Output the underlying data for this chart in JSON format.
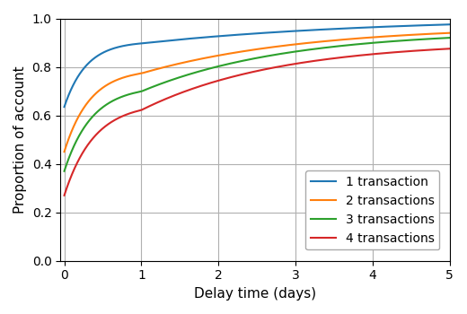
{
  "title": "",
  "xlabel": "Delay time (days)",
  "ylabel": "Proportion of account",
  "xlim": [
    -0.05,
    5
  ],
  "ylim": [
    0.0,
    1.0
  ],
  "xticks": [
    0,
    1,
    2,
    3,
    4,
    5
  ],
  "yticks": [
    0.0,
    0.2,
    0.4,
    0.6,
    0.8,
    1.0
  ],
  "legend_labels": [
    "1 transaction",
    "2 transactions",
    "3 transactions",
    "4 transactions"
  ],
  "line_colors": [
    "#1f77b4",
    "#ff7f0e",
    "#2ca02c",
    "#d62728"
  ],
  "line_width": 1.5,
  "background_color": "#ffffff",
  "grid_color": "#b0b0b0",
  "curve_params": [
    {
      "y0": 0.635,
      "y1": 0.905,
      "y5": 0.975,
      "k1": 3.5,
      "k2": 0.18
    },
    {
      "y0": 0.45,
      "y1": 0.79,
      "y5": 0.94,
      "k1": 3.0,
      "k2": 0.16
    },
    {
      "y0": 0.37,
      "y1": 0.72,
      "y5": 0.92,
      "k1": 2.8,
      "k2": 0.17
    },
    {
      "y0": 0.27,
      "y1": 0.65,
      "y5": 0.875,
      "k1": 2.6,
      "k2": 0.16
    }
  ]
}
